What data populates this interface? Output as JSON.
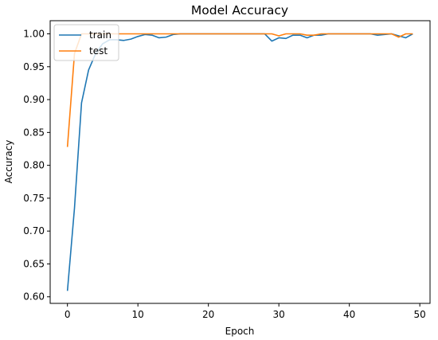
{
  "chart_data": {
    "type": "line",
    "title": "Model Accuracy",
    "xlabel": "Epoch",
    "ylabel": "Accuracy",
    "xlim": [
      -2.45,
      51.45
    ],
    "ylim": [
      0.59,
      1.02
    ],
    "xticks": [
      0,
      10,
      20,
      30,
      40,
      50
    ],
    "yticks": [
      0.6,
      0.65,
      0.7,
      0.75,
      0.8,
      0.85,
      0.9,
      0.95,
      1.0
    ],
    "grid": false,
    "legend": {
      "placement": "top-left",
      "entries": [
        "train",
        "test"
      ]
    },
    "x": [
      0,
      1,
      2,
      3,
      4,
      5,
      6,
      7,
      8,
      9,
      10,
      11,
      12,
      13,
      14,
      15,
      16,
      17,
      18,
      19,
      20,
      21,
      22,
      23,
      24,
      25,
      26,
      27,
      28,
      29,
      30,
      31,
      32,
      33,
      34,
      35,
      36,
      37,
      38,
      39,
      40,
      41,
      42,
      43,
      44,
      45,
      46,
      47,
      48,
      49
    ],
    "series": [
      {
        "name": "train",
        "color": "#1f77b4",
        "values": [
          0.609,
          0.735,
          0.895,
          0.945,
          0.97,
          0.985,
          0.991,
          0.991,
          0.99,
          0.992,
          0.996,
          0.999,
          0.998,
          0.994,
          0.995,
          0.999,
          1.0,
          1.0,
          1.0,
          1.0,
          1.0,
          1.0,
          1.0,
          1.0,
          1.0,
          1.0,
          1.0,
          1.0,
          1.0,
          0.989,
          0.994,
          0.993,
          0.998,
          0.998,
          0.994,
          0.998,
          0.998,
          1.0,
          1.0,
          1.0,
          1.0,
          1.0,
          1.0,
          1.0,
          0.998,
          0.999,
          1.0,
          0.997,
          0.994,
          1.0
        ]
      },
      {
        "name": "test",
        "color": "#ff7f0e",
        "values": [
          0.828,
          0.97,
          1.0,
          1.0,
          1.0,
          1.0,
          1.0,
          1.0,
          1.0,
          1.0,
          1.0,
          1.0,
          1.0,
          1.0,
          1.0,
          1.0,
          1.0,
          1.0,
          1.0,
          1.0,
          1.0,
          1.0,
          1.0,
          1.0,
          1.0,
          1.0,
          1.0,
          1.0,
          1.0,
          1.0,
          0.997,
          1.0,
          1.0,
          1.0,
          0.998,
          0.998,
          1.0,
          1.0,
          1.0,
          1.0,
          1.0,
          1.0,
          1.0,
          1.0,
          1.0,
          1.0,
          1.0,
          0.995,
          1.0,
          1.0
        ]
      }
    ]
  }
}
